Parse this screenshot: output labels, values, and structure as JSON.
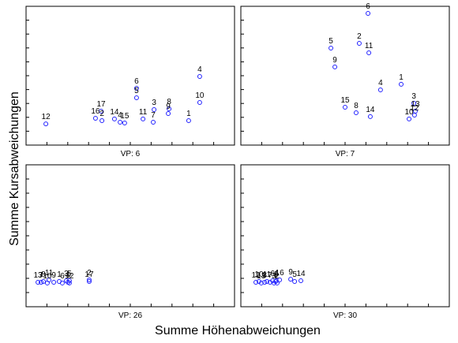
{
  "xlabel": "Summe Höhenabweichungen",
  "ylabel": "Summe Kursabweichungen",
  "chart_data": [
    {
      "type": "scatter",
      "title": "VP: 6",
      "color": "#2323ff",
      "xlim": [
        0,
        100
      ],
      "ylim": [
        0,
        100
      ],
      "labels": [
        "12",
        "17",
        "16",
        "2",
        "14",
        "4",
        "15",
        "6",
        "5",
        "11",
        "3",
        "7",
        "8",
        "9",
        "1",
        "4",
        "10"
      ],
      "x": [
        9.5,
        36.0,
        33.3,
        36.4,
        42.4,
        45.1,
        47.3,
        53.0,
        53.0,
        56.1,
        61.4,
        61.0,
        68.6,
        68.2,
        78.0,
        83.3,
        83.3
      ],
      "y": [
        15.3,
        24.4,
        19.3,
        17.6,
        18.8,
        16.5,
        15.9,
        40.9,
        34.1,
        18.8,
        25.6,
        16.5,
        26.1,
        22.7,
        17.6,
        49.4,
        30.7
      ]
    },
    {
      "type": "scatter",
      "title": "VP: 7",
      "color": "#2323ff",
      "xlim": [
        0,
        100
      ],
      "ylim": [
        0,
        100
      ],
      "labels": [
        "6",
        "5",
        "2",
        "11",
        "9",
        "4",
        "1",
        "3",
        "15",
        "8",
        "14",
        "13",
        "12",
        "10"
      ],
      "x": [
        61.0,
        43.2,
        56.8,
        61.4,
        45.1,
        67.0,
        76.9,
        83.0,
        50.0,
        55.3,
        62.1,
        83.7,
        83.3,
        80.7
      ],
      "y": [
        94.9,
        69.9,
        73.3,
        66.5,
        56.3,
        39.8,
        43.8,
        30.1,
        27.3,
        23.3,
        20.5,
        24.4,
        21.6,
        18.8
      ]
    },
    {
      "type": "scatter",
      "title": "VP: 26",
      "color": "#2323ff",
      "xlim": [
        0,
        100
      ],
      "ylim": [
        0,
        100
      ],
      "labels": [
        "13",
        "7",
        "8",
        "11",
        "10",
        "9",
        "1",
        "6",
        "3",
        "4",
        "5",
        "12",
        "2",
        "17"
      ],
      "x": [
        5.7,
        7.2,
        8.3,
        11.0,
        10.2,
        13.3,
        15.9,
        17.4,
        19.3,
        20.1,
        20.8,
        20.8,
        30.3,
        30.3
      ],
      "y": [
        17.2,
        17.2,
        17.8,
        18.9,
        16.7,
        17.2,
        17.8,
        16.7,
        18.3,
        17.2,
        18.3,
        16.7,
        18.9,
        17.8
      ]
    },
    {
      "type": "scatter",
      "title": "VP: 30",
      "color": "#2323ff",
      "xlim": [
        0,
        100
      ],
      "ylim": [
        0,
        100
      ],
      "labels": [
        "12",
        "10",
        "13",
        "8",
        "11",
        "7",
        "6",
        "3",
        "1",
        "4",
        "2",
        "16",
        "9",
        "5",
        "14"
      ],
      "x": [
        7.2,
        8.7,
        9.8,
        11.4,
        12.5,
        14.0,
        15.2,
        15.9,
        16.7,
        17.0,
        17.4,
        18.6,
        23.9,
        25.8,
        28.8
      ],
      "y": [
        17.2,
        17.8,
        16.7,
        17.2,
        17.8,
        17.2,
        18.3,
        16.7,
        17.8,
        18.3,
        16.7,
        18.9,
        19.4,
        17.8,
        18.3
      ]
    }
  ]
}
